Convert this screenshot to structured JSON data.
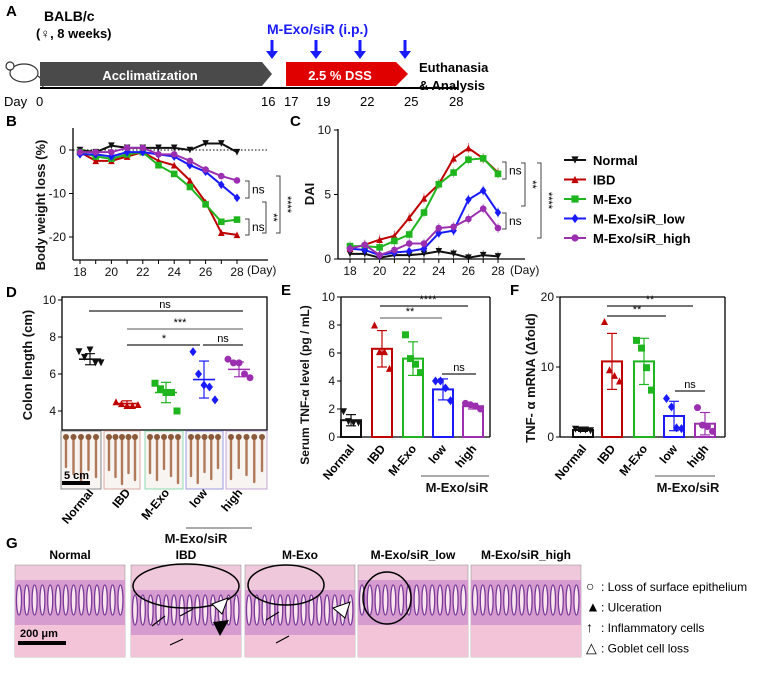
{
  "panel_labels": {
    "a": "A",
    "b": "B",
    "c": "C",
    "d": "D",
    "e": "E",
    "f": "F",
    "g": "G"
  },
  "timeline": {
    "strain": "BALB/c",
    "sex_age": "(♀, 8 weeks)",
    "injection_label": "M-Exo/siR (i.p.)",
    "acclimatization": "Acclimatization",
    "dss": "2.5 % DSS",
    "euthanasia_line1": "Euthanasia",
    "euthanasia_line2": "& Analysis",
    "day_prefix": "Day",
    "days": [
      "0",
      "16",
      "17",
      "19",
      "22",
      "25",
      "28"
    ],
    "injection_days": [
      16,
      19,
      22,
      25
    ],
    "colors": {
      "acclimatization": "#4a4a4a",
      "dss": "#e00000",
      "arrow": "#1a1aff"
    }
  },
  "legend": {
    "items": [
      {
        "label": "Normal",
        "color": "#111111",
        "marker": "triangle-down"
      },
      {
        "label": "IBD",
        "color": "#c00000",
        "marker": "triangle-up"
      },
      {
        "label": "M-Exo",
        "color": "#1fb51f",
        "marker": "square"
      },
      {
        "label": "M-Exo/siR_low",
        "color": "#1a1aff",
        "marker": "diamond"
      },
      {
        "label": "M-Exo/siR_high",
        "color": "#9b2fb0",
        "marker": "circle"
      }
    ]
  },
  "chart_data": [
    {
      "id": "B",
      "type": "line",
      "ylabel": "Body weight loss (%)",
      "xlabel": "(Day)",
      "x": [
        18,
        19,
        20,
        21,
        22,
        23,
        24,
        25,
        26,
        27,
        28
      ],
      "xticks": [
        "18",
        "20",
        "22",
        "24",
        "26",
        "28"
      ],
      "yticks": [
        "0",
        "-10",
        "-20"
      ],
      "ylim": [
        -25,
        5
      ],
      "series": [
        {
          "name": "Normal",
          "values": [
            0,
            -0.5,
            1,
            0.5,
            0.5,
            0.5,
            0.5,
            0,
            1.5,
            1.5,
            -0.5
          ]
        },
        {
          "name": "IBD",
          "values": [
            -0.5,
            -2.5,
            -2.5,
            -1.5,
            -0.5,
            -2.5,
            -3.5,
            -7,
            -12,
            -19,
            -19.5
          ]
        },
        {
          "name": "M-Exo",
          "values": [
            -0.5,
            -1.5,
            -2,
            -1,
            -0.5,
            -3.5,
            -5.5,
            -8.5,
            -12.5,
            -16.5,
            -16
          ]
        },
        {
          "name": "M-Exo/siR_low",
          "values": [
            -1,
            -1,
            -1.5,
            -0.5,
            -0.5,
            -1,
            -1.5,
            -3.5,
            -5,
            -8,
            -11
          ]
        },
        {
          "name": "M-Exo/siR_high",
          "values": [
            -0.5,
            -0.5,
            -0.5,
            0.5,
            0.5,
            -1,
            -1,
            -2.5,
            -4.5,
            -6,
            -7
          ]
        }
      ],
      "annotations": [
        "ns",
        "ns",
        "**",
        "****"
      ]
    },
    {
      "id": "C",
      "type": "line",
      "ylabel": "DAI",
      "xlabel": "(Day)",
      "x": [
        18,
        19,
        20,
        21,
        22,
        23,
        24,
        25,
        26,
        27,
        28
      ],
      "xticks": [
        "18",
        "20",
        "22",
        "24",
        "26",
        "28"
      ],
      "yticks": [
        "0",
        "5",
        "10"
      ],
      "ylim": [
        0,
        10
      ],
      "series": [
        {
          "name": "Normal",
          "values": [
            0.4,
            0.4,
            0.1,
            0.3,
            0.3,
            0.4,
            0.6,
            0.4,
            0.1,
            0.3,
            0.2
          ]
        },
        {
          "name": "IBD",
          "values": [
            0.8,
            1.1,
            1.5,
            1.8,
            3.2,
            4.7,
            5.8,
            7.8,
            8.6,
            7.8,
            6.7
          ]
        },
        {
          "name": "M-Exo",
          "values": [
            1,
            1,
            0.9,
            1.4,
            1.9,
            3.6,
            5.8,
            6.7,
            7.7,
            7.8,
            6.6
          ]
        },
        {
          "name": "M-Exo/siR_low",
          "values": [
            0.8,
            0.7,
            0.3,
            0.5,
            0.6,
            0.8,
            2,
            2.2,
            4.6,
            5.3,
            3.6
          ]
        },
        {
          "name": "M-Exo/siR_high",
          "values": [
            0.8,
            1.1,
            0.3,
            0.7,
            1.2,
            1.2,
            2.4,
            2.5,
            3.1,
            3.9,
            2.4
          ]
        }
      ],
      "annotations": [
        "ns",
        "ns",
        "**",
        "****"
      ]
    },
    {
      "id": "D",
      "type": "scatter",
      "ylabel": "Colon length (cm)",
      "categories": [
        "Normal",
        "IBD",
        "M-Exo",
        "low",
        "high"
      ],
      "group_label": "M-Exo/siR",
      "yticks": [
        "4",
        "6",
        "8",
        "10"
      ],
      "ylim": [
        3,
        10
      ],
      "means": [
        6.8,
        4.4,
        5.0,
        5.7,
        6.25
      ],
      "sd": [
        0.3,
        0.15,
        0.55,
        1.0,
        0.4
      ],
      "points": [
        [
          7.2,
          6.9,
          7.3,
          6.6,
          6.6
        ],
        [
          4.5,
          4.4,
          4.3,
          4.3,
          4.35
        ],
        [
          5.5,
          5.2,
          5.0,
          5.0,
          4.0
        ],
        [
          7.2,
          6.0,
          5.4,
          5.3,
          4.6
        ],
        [
          6.8,
          6.6,
          6.6,
          6.0,
          5.8
        ]
      ],
      "annotations": [
        "ns",
        "***",
        "*",
        "ns"
      ],
      "scale_bar": "5 cm"
    },
    {
      "id": "E",
      "type": "bar",
      "ylabel": "Serum TNF-α level (pg / mL)",
      "categories": [
        "Normal",
        "IBD",
        "M-Exo",
        "low",
        "high"
      ],
      "group_label": "M-Exo/siR",
      "yticks": [
        "0",
        "2",
        "4",
        "6",
        "8",
        "10"
      ],
      "ylim": [
        0,
        10
      ],
      "means": [
        1.2,
        6.3,
        5.6,
        3.4,
        2.2
      ],
      "sd": [
        0.4,
        1.3,
        1.2,
        0.75,
        0.2
      ],
      "points": [
        [
          1.8,
          1.1,
          1.0,
          1.0
        ],
        [
          8.0,
          6.1,
          6.1,
          4.9
        ],
        [
          7.3,
          5.6,
          5.2,
          4.6
        ],
        [
          4.0,
          4.0,
          3.5,
          2.6
        ],
        [
          2.4,
          2.3,
          2.2,
          2.0
        ]
      ],
      "annotations": [
        "****",
        "**",
        "ns"
      ]
    },
    {
      "id": "F",
      "type": "bar",
      "ylabel": "TNF- α mRNA (Δfold)",
      "categories": [
        "Normal",
        "IBD",
        "M-Exo",
        "low",
        "high"
      ],
      "group_label": "M-Exo/siR",
      "yticks": [
        "0",
        "10",
        "20"
      ],
      "ylim": [
        0,
        20
      ],
      "means": [
        1.0,
        10.8,
        10.8,
        3.0,
        1.9
      ],
      "sd": [
        0.2,
        4.0,
        3.3,
        2.1,
        1.6
      ],
      "points": [
        [
          1.1,
          1.0,
          1.0,
          0.9
        ],
        [
          16.5,
          9.6,
          8.8,
          8.0
        ],
        [
          13.8,
          12.7,
          9.9,
          6.7
        ],
        [
          5.5,
          4.3,
          1.3,
          1.2
        ],
        [
          4.2,
          1.7,
          1.5,
          0.8
        ]
      ],
      "annotations": [
        "**",
        "**",
        "ns"
      ]
    }
  ],
  "histology": {
    "titles": [
      "Normal",
      "IBD",
      "M-Exo",
      "M-Exo/siR_low",
      "M-Exo/siR_high"
    ],
    "scale_bar": "200 μm",
    "legend": [
      {
        "symbol": "○",
        "text": ": Loss of surface epithelium"
      },
      {
        "symbol": "▲",
        "text": ": Ulceration"
      },
      {
        "symbol": "↑",
        "text": ": Inflammatory cells"
      },
      {
        "symbol": "△",
        "text": ":  Goblet cell loss"
      }
    ]
  }
}
